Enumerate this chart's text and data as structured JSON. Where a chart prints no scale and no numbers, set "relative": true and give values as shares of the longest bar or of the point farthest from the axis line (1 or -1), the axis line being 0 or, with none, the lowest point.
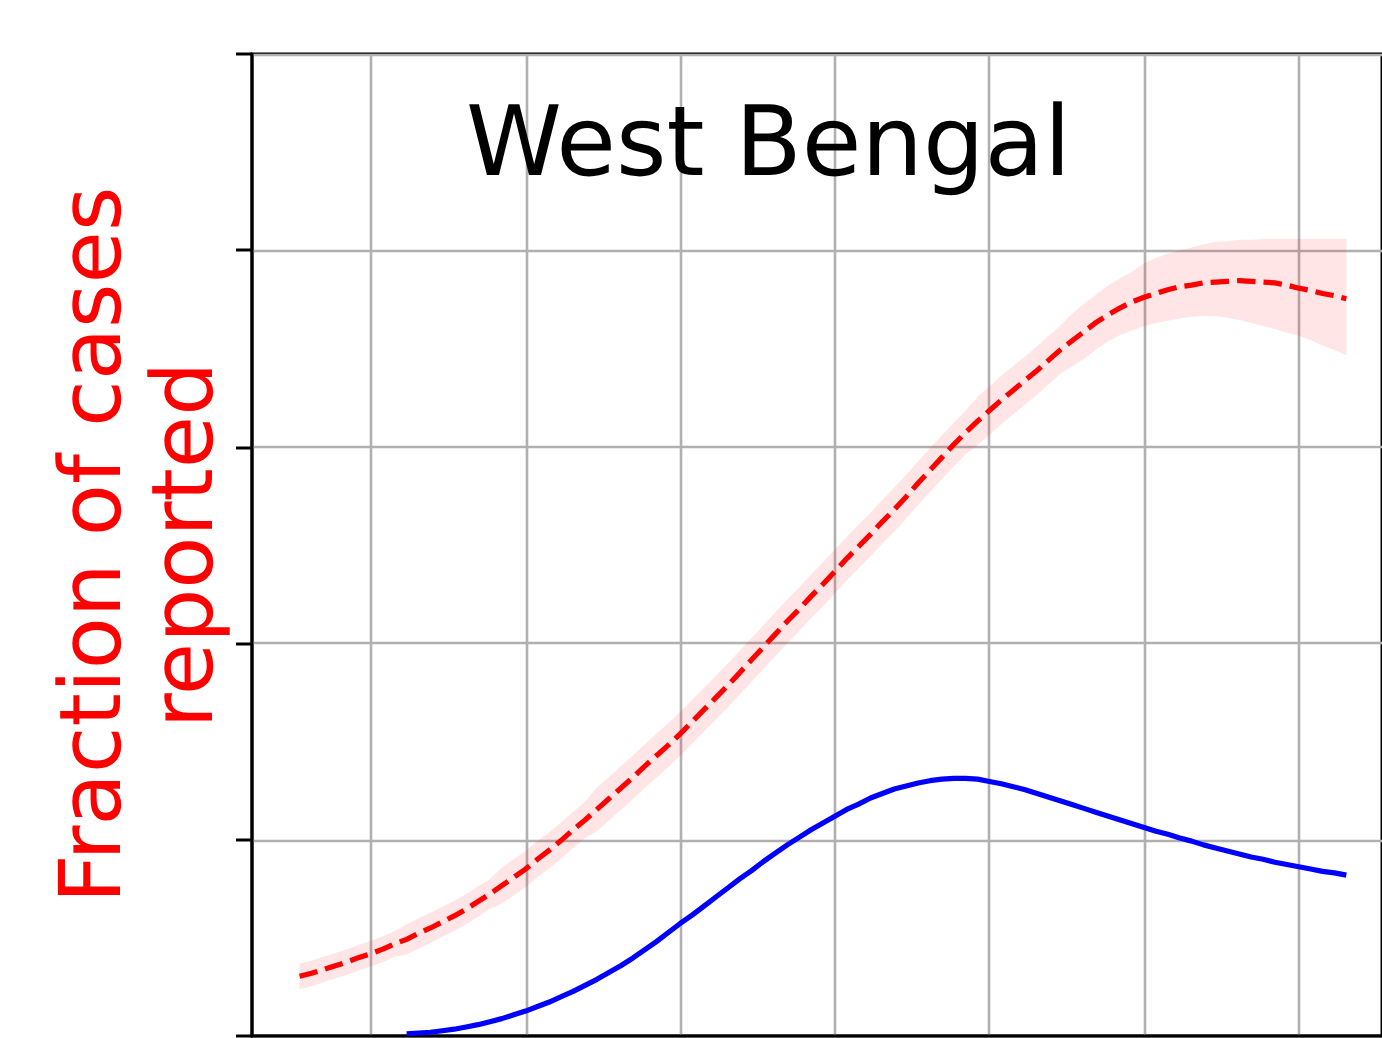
{
  "chart_data": {
    "type": "line",
    "title": "West Bengal",
    "ylabel": "Fraction of cases\nreported",
    "relative": true,
    "grid": true,
    "marker": "none",
    "tick_labels": false,
    "categories": [
      null,
      null,
      null,
      null,
      null,
      null,
      null,
      null,
      null,
      null,
      null,
      null,
      null,
      null,
      null,
      null,
      null,
      null,
      null,
      null,
      null,
      null,
      null,
      null,
      null,
      null,
      null,
      null,
      null,
      null,
      null,
      null,
      null,
      null,
      null,
      null,
      null,
      null,
      null,
      null,
      null,
      null,
      null,
      null,
      null,
      null,
      null,
      null,
      null,
      null,
      null,
      null,
      null,
      null,
      null,
      null,
      null,
      null,
      null,
      null,
      null,
      null,
      null,
      null,
      null,
      null,
      null,
      null,
      null,
      null,
      null,
      null,
      null,
      null,
      null,
      null,
      null,
      null,
      null,
      null,
      null,
      null,
      null,
      null,
      null,
      null,
      null,
      null,
      null,
      null,
      null,
      null,
      null,
      null,
      null,
      null
    ],
    "series": [
      {
        "color": "#ff0000",
        "line_style": "dashed",
        "values": [
          null,
          null,
          null,
          null,
          0.079,
          0.083,
          0.088,
          0.093,
          0.098,
          0.104,
          0.109,
          0.115,
          0.122,
          0.128,
          0.136,
          0.143,
          0.151,
          0.159,
          0.168,
          0.178,
          0.188,
          0.199,
          0.21,
          0.221,
          0.234,
          0.246,
          0.259,
          0.273,
          0.286,
          0.3,
          0.314,
          0.328,
          0.342,
          0.357,
          0.371,
          0.385,
          0.4,
          0.416,
          0.432,
          0.448,
          0.464,
          0.481,
          0.498,
          0.515,
          0.532,
          0.549,
          0.565,
          0.582,
          0.598,
          0.615,
          0.632,
          0.648,
          0.664,
          0.681,
          0.697,
          0.714,
          0.732,
          0.749,
          0.766,
          0.783,
          0.799,
          0.814,
          0.828,
          0.842,
          0.855,
          0.868,
          0.881,
          0.895,
          0.909,
          0.921,
          0.933,
          0.945,
          0.955,
          0.964,
          0.972,
          0.978,
          0.983,
          0.988,
          0.992,
          0.994,
          0.997,
          0.998,
          0.999,
          1,
          0.999,
          0.998,
          0.997,
          0.994,
          0.99,
          0.987,
          0.983,
          0.98,
          0.976,
          null,
          null,
          null
        ],
        "upper": [
          null,
          null,
          null,
          null,
          0.096,
          0.1,
          0.105,
          0.11,
          0.115,
          0.121,
          0.126,
          0.132,
          0.139,
          0.148,
          0.156,
          0.163,
          0.171,
          0.179,
          0.188,
          0.198,
          0.208,
          0.223,
          0.234,
          0.245,
          0.258,
          0.27,
          0.283,
          0.297,
          0.31,
          0.329,
          0.343,
          0.357,
          0.371,
          0.386,
          0.4,
          0.414,
          0.429,
          0.445,
          0.461,
          0.477,
          0.493,
          0.51,
          0.527,
          0.544,
          0.561,
          0.578,
          0.594,
          0.611,
          0.627,
          0.644,
          0.661,
          0.677,
          0.693,
          0.71,
          0.726,
          0.743,
          0.761,
          0.778,
          0.795,
          0.812,
          0.828,
          0.846,
          0.86,
          0.874,
          0.887,
          0.9,
          0.913,
          0.927,
          0.941,
          0.957,
          0.97,
          0.982,
          0.994,
          1.003,
          1.012,
          1.023,
          1.03,
          1.036,
          1.04,
          1.044,
          1.048,
          1.051,
          1.052,
          1.054,
          1.054,
          1.055,
          1.055,
          1.055,
          1.055,
          1.055,
          1.055,
          1.055,
          1.055,
          null,
          null,
          null
        ],
        "lower": [
          null,
          null,
          null,
          null,
          0.062,
          0.066,
          0.071,
          0.076,
          0.081,
          0.087,
          0.092,
          0.098,
          0.105,
          0.108,
          0.116,
          0.123,
          0.131,
          0.139,
          0.148,
          0.158,
          0.168,
          0.175,
          0.186,
          0.197,
          0.21,
          0.222,
          0.235,
          0.249,
          0.262,
          0.271,
          0.285,
          0.299,
          0.313,
          0.328,
          0.342,
          0.356,
          0.371,
          0.387,
          0.403,
          0.419,
          0.435,
          0.452,
          0.469,
          0.486,
          0.503,
          0.52,
          0.536,
          0.553,
          0.569,
          0.586,
          0.603,
          0.619,
          0.635,
          0.652,
          0.668,
          0.685,
          0.703,
          0.72,
          0.737,
          0.754,
          0.77,
          0.782,
          0.796,
          0.81,
          0.823,
          0.836,
          0.849,
          0.863,
          0.877,
          0.887,
          0.897,
          0.909,
          0.92,
          0.928,
          0.934,
          0.94,
          0.944,
          0.947,
          0.95,
          0.952,
          0.953,
          0.953,
          0.951,
          0.948,
          0.944,
          0.94,
          0.936,
          0.931,
          0.927,
          0.921,
          0.914,
          0.908,
          0.901,
          null,
          null,
          null
        ]
      },
      {
        "color": "#0000ff",
        "line_style": "solid",
        "values": [
          null,
          null,
          null,
          null,
          null,
          null,
          null,
          null,
          null,
          null,
          null,
          null,
          null,
          0.003,
          0.004,
          0.005,
          0.007,
          0.009,
          0.012,
          0.015,
          0.019,
          0.023,
          0.028,
          0.033,
          0.039,
          0.045,
          0.052,
          0.059,
          0.067,
          0.075,
          0.084,
          0.093,
          0.103,
          0.114,
          0.125,
          0.137,
          0.149,
          0.16,
          0.172,
          0.184,
          0.196,
          0.208,
          0.219,
          0.231,
          0.242,
          0.253,
          0.263,
          0.273,
          0.282,
          0.291,
          0.3,
          0.307,
          0.315,
          0.321,
          0.327,
          0.331,
          0.335,
          0.338,
          0.34,
          0.341,
          0.341,
          0.34,
          0.337,
          0.334,
          0.33,
          0.326,
          0.321,
          0.316,
          0.311,
          0.306,
          0.301,
          0.296,
          0.291,
          0.286,
          0.281,
          0.276,
          0.271,
          0.267,
          0.262,
          0.258,
          0.253,
          0.249,
          0.245,
          0.241,
          0.237,
          0.234,
          0.23,
          0.227,
          0.224,
          0.221,
          0.218,
          0.216,
          0.213,
          null,
          null,
          null
        ]
      }
    ]
  }
}
